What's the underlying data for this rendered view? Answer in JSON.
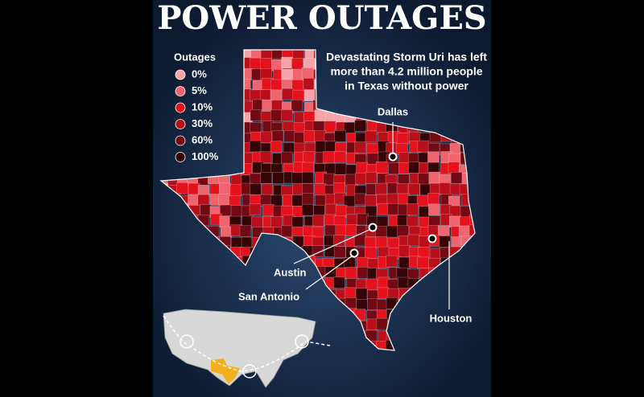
{
  "title": "POWER OUTAGES",
  "subtitle": [
    "Devastating Storm Uri has left",
    "more than 4.2 million people",
    "in Texas without power"
  ],
  "legend": {
    "title": "Outages",
    "items": [
      {
        "label": "0%",
        "color": "#f5a3a9"
      },
      {
        "label": "5%",
        "color": "#ee6570"
      },
      {
        "label": "10%",
        "color": "#e3121d"
      },
      {
        "label": "30%",
        "color": "#b90f1a"
      },
      {
        "label": "60%",
        "color": "#730912"
      },
      {
        "label": "100%",
        "color": "#360407"
      }
    ]
  },
  "cities": [
    {
      "name": "Dallas"
    },
    {
      "name": "Austin"
    },
    {
      "name": "San Antonio"
    },
    {
      "name": "Houston"
    }
  ]
}
